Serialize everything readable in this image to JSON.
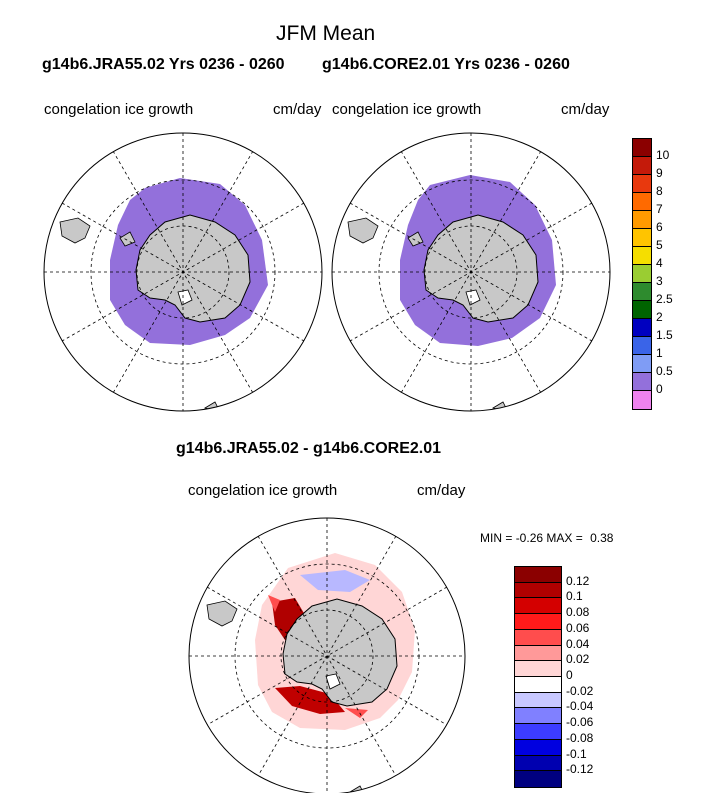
{
  "main_title": "JFM Mean",
  "panel_left": {
    "header": "g14b6.JRA55.02  Yrs 0236 - 0260",
    "field": "congelation ice growth",
    "units": "cm/day"
  },
  "panel_right": {
    "header": "g14b6.CORE2.01  Yrs 0236 - 0260",
    "field": "congelation ice growth",
    "units": "cm/day"
  },
  "panel_diff": {
    "header": "g14b6.JRA55.02 - g14b6.CORE2.01",
    "field": "congelation ice growth",
    "units": "cm/day",
    "min_label": "MIN =",
    "min_value": "-0.26",
    "max_label": "MAX =",
    "max_value": "0.38"
  },
  "colorbar_mean": {
    "labels": [
      "10",
      "9",
      "8",
      "7",
      "6",
      "5",
      "4",
      "3",
      "2.5",
      "2",
      "1.5",
      "1",
      "0.5",
      "0"
    ],
    "colors": [
      "#8b0000",
      "#c41a0a",
      "#e8390e",
      "#ff6a00",
      "#ff9a00",
      "#ffc400",
      "#f5de00",
      "#9acd32",
      "#2e8b2e",
      "#006400",
      "#0000c0",
      "#3a64e8",
      "#7f9cf5",
      "#9370db",
      "#ee82ee"
    ]
  },
  "colorbar_diff": {
    "labels": [
      "0.12",
      "0.1",
      "0.08",
      "0.06",
      "0.04",
      "0.02",
      "0",
      "-0.02",
      "-0.04",
      "-0.06",
      "-0.08",
      "-0.1",
      "-0.12"
    ],
    "colors": [
      "#8b0000",
      "#b00000",
      "#d40000",
      "#ff1a1a",
      "#ff4d4d",
      "#ff9999",
      "#ffd6d6",
      "#ffffff",
      "#c8c8ff",
      "#8080ff",
      "#3c3cff",
      "#0000e0",
      "#0000b0",
      "#000080"
    ]
  }
}
